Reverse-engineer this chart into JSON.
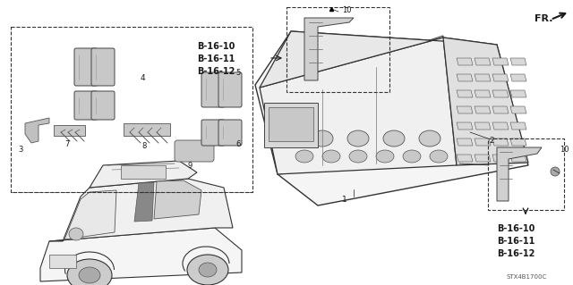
{
  "bg_color": "#ffffff",
  "fig_width": 6.4,
  "fig_height": 3.19,
  "dpi": 100,
  "watermark": "STX4B1700C",
  "line_color": "#1a1a1a",
  "ref_top": [
    "B-16-10",
    "B-16-11",
    "B-16-12"
  ],
  "ref_bot": [
    "B-16-10",
    "B-16-11",
    "B-16-12"
  ]
}
